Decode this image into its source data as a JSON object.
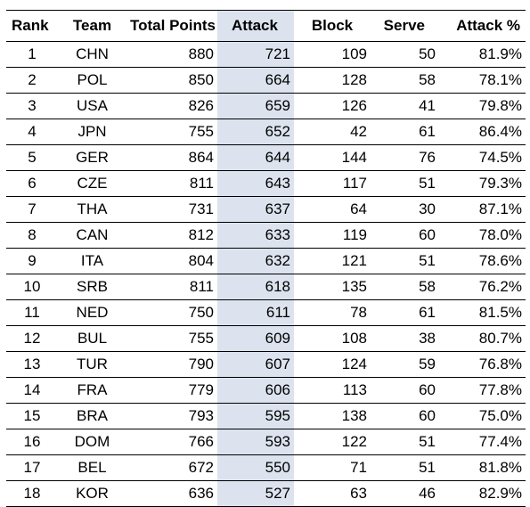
{
  "table": {
    "headers": {
      "rank": "Rank",
      "team": "Team",
      "total_points": "Total Points",
      "attack": "Attack",
      "block": "Block",
      "serve": "Serve",
      "attack_pct": "Attack %"
    },
    "highlight_color": "#dce3ee",
    "rows": [
      {
        "rank": "1",
        "team": "CHN",
        "total_points": "880",
        "attack": "721",
        "block": "109",
        "serve": "50",
        "attack_pct": "81.9%"
      },
      {
        "rank": "2",
        "team": "POL",
        "total_points": "850",
        "attack": "664",
        "block": "128",
        "serve": "58",
        "attack_pct": "78.1%"
      },
      {
        "rank": "3",
        "team": "USA",
        "total_points": "826",
        "attack": "659",
        "block": "126",
        "serve": "41",
        "attack_pct": "79.8%"
      },
      {
        "rank": "4",
        "team": "JPN",
        "total_points": "755",
        "attack": "652",
        "block": "42",
        "serve": "61",
        "attack_pct": "86.4%"
      },
      {
        "rank": "5",
        "team": "GER",
        "total_points": "864",
        "attack": "644",
        "block": "144",
        "serve": "76",
        "attack_pct": "74.5%"
      },
      {
        "rank": "6",
        "team": "CZE",
        "total_points": "811",
        "attack": "643",
        "block": "117",
        "serve": "51",
        "attack_pct": "79.3%"
      },
      {
        "rank": "7",
        "team": "THA",
        "total_points": "731",
        "attack": "637",
        "block": "64",
        "serve": "30",
        "attack_pct": "87.1%"
      },
      {
        "rank": "8",
        "team": "CAN",
        "total_points": "812",
        "attack": "633",
        "block": "119",
        "serve": "60",
        "attack_pct": "78.0%"
      },
      {
        "rank": "9",
        "team": "ITA",
        "total_points": "804",
        "attack": "632",
        "block": "121",
        "serve": "51",
        "attack_pct": "78.6%"
      },
      {
        "rank": "10",
        "team": "SRB",
        "total_points": "811",
        "attack": "618",
        "block": "135",
        "serve": "58",
        "attack_pct": "76.2%"
      },
      {
        "rank": "11",
        "team": "NED",
        "total_points": "750",
        "attack": "611",
        "block": "78",
        "serve": "61",
        "attack_pct": "81.5%"
      },
      {
        "rank": "12",
        "team": "BUL",
        "total_points": "755",
        "attack": "609",
        "block": "108",
        "serve": "38",
        "attack_pct": "80.7%"
      },
      {
        "rank": "13",
        "team": "TUR",
        "total_points": "790",
        "attack": "607",
        "block": "124",
        "serve": "59",
        "attack_pct": "76.8%"
      },
      {
        "rank": "14",
        "team": "FRA",
        "total_points": "779",
        "attack": "606",
        "block": "113",
        "serve": "60",
        "attack_pct": "77.8%"
      },
      {
        "rank": "15",
        "team": "BRA",
        "total_points": "793",
        "attack": "595",
        "block": "138",
        "serve": "60",
        "attack_pct": "75.0%"
      },
      {
        "rank": "16",
        "team": "DOM",
        "total_points": "766",
        "attack": "593",
        "block": "122",
        "serve": "51",
        "attack_pct": "77.4%"
      },
      {
        "rank": "17",
        "team": "BEL",
        "total_points": "672",
        "attack": "550",
        "block": "71",
        "serve": "51",
        "attack_pct": "81.8%"
      },
      {
        "rank": "18",
        "team": "KOR",
        "total_points": "636",
        "attack": "527",
        "block": "63",
        "serve": "46",
        "attack_pct": "82.9%"
      }
    ]
  }
}
